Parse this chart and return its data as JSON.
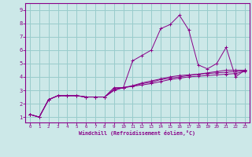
{
  "xlabel": "Windchill (Refroidissement éolien,°C)",
  "bg_color": "#cce8e8",
  "line_color": "#880088",
  "grid_color": "#99cccc",
  "xlim": [
    -0.5,
    23.5
  ],
  "ylim": [
    0.6,
    9.5
  ],
  "xticks": [
    0,
    1,
    2,
    3,
    4,
    5,
    6,
    7,
    8,
    9,
    10,
    11,
    12,
    13,
    14,
    15,
    16,
    17,
    18,
    19,
    20,
    21,
    22,
    23
  ],
  "yticks": [
    1,
    2,
    3,
    4,
    5,
    6,
    7,
    8,
    9
  ],
  "series": [
    [
      1.2,
      1.0,
      2.3,
      2.6,
      2.6,
      2.6,
      2.5,
      2.5,
      2.5,
      3.0,
      3.2,
      5.2,
      5.6,
      6.0,
      7.6,
      7.9,
      8.6,
      7.5,
      4.9,
      4.6,
      5.0,
      6.2,
      4.0,
      4.5
    ],
    [
      1.2,
      1.0,
      2.3,
      2.6,
      2.6,
      2.6,
      2.5,
      2.5,
      2.5,
      3.2,
      3.2,
      3.3,
      3.5,
      3.6,
      3.8,
      3.9,
      4.0,
      4.1,
      4.2,
      4.3,
      4.4,
      4.5,
      4.5,
      4.5
    ],
    [
      1.2,
      1.0,
      2.3,
      2.6,
      2.6,
      2.6,
      2.5,
      2.5,
      2.5,
      3.1,
      3.2,
      3.35,
      3.55,
      3.7,
      3.85,
      4.0,
      4.1,
      4.15,
      4.2,
      4.25,
      4.3,
      4.35,
      4.4,
      4.45
    ],
    [
      1.2,
      1.0,
      2.3,
      2.6,
      2.6,
      2.6,
      2.5,
      2.5,
      2.5,
      3.0,
      3.2,
      3.3,
      3.4,
      3.5,
      3.65,
      3.8,
      3.9,
      4.0,
      4.05,
      4.1,
      4.15,
      4.2,
      4.25,
      4.4
    ]
  ]
}
